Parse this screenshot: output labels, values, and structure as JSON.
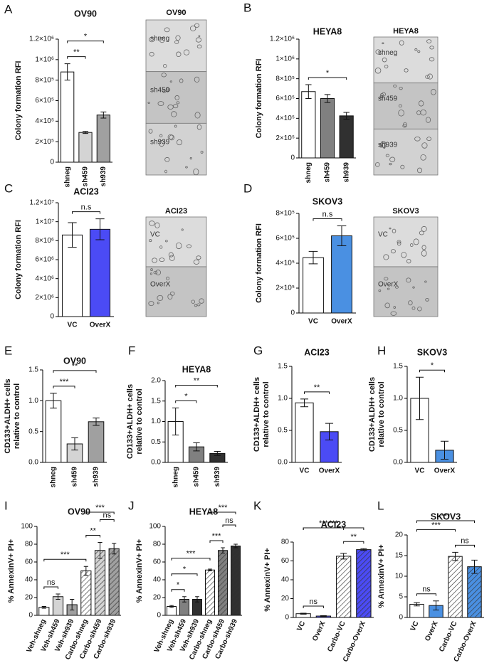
{
  "chart_data": [
    {
      "type": "bar",
      "panel": "A",
      "title": "OV90",
      "y_label": "Colony formation RFI",
      "categories": [
        "shneg",
        "sh459",
        "sh939"
      ],
      "values": [
        880000,
        290000,
        460000
      ],
      "errors": [
        80000,
        10000,
        30000
      ],
      "colors": [
        "#ffffff",
        "#d4d4d4",
        "#a0a0a0"
      ],
      "ylim": [
        0,
        1200000
      ],
      "yticks": [
        0,
        {
          "value": 200000,
          "label": "2×10⁵"
        },
        {
          "value": 400000,
          "label": "4×10⁵"
        },
        {
          "value": 600000,
          "label": "6×10⁵"
        },
        {
          "value": 800000,
          "label": "8×10⁵"
        },
        {
          "value": 1000000,
          "label": "1×10⁶"
        },
        {
          "value": 1200000,
          "label": "1.2×10⁶"
        }
      ],
      "annotations": [
        {
          "from": 0,
          "to": 1,
          "label": "**"
        },
        {
          "from": 0,
          "to": 2,
          "label": "*"
        }
      ],
      "image": {
        "title": "OV90",
        "labels": [
          "shneg",
          "sh459",
          "sh939"
        ]
      }
    },
    {
      "type": "bar",
      "panel": "B",
      "title": "HEYA8",
      "y_label": "Colony formation RFI",
      "categories": [
        "shneg",
        "sh459",
        "sh939"
      ],
      "values": [
        670000,
        600000,
        425000
      ],
      "errors": [
        70000,
        40000,
        35000
      ],
      "colors": [
        "#ffffff",
        "#808080",
        "#303030"
      ],
      "ylim": [
        0,
        1200000
      ],
      "yticks": [
        0,
        {
          "value": 200000,
          "label": "2×10⁵"
        },
        {
          "value": 400000,
          "label": "4×10⁵"
        },
        {
          "value": 600000,
          "label": "6×10⁵"
        },
        {
          "value": 800000,
          "label": "8×10⁵"
        },
        {
          "value": 1000000,
          "label": "1×10⁶"
        },
        {
          "value": 1200000,
          "label": "1.2×10⁶"
        }
      ],
      "annotations": [
        {
          "from": 0,
          "to": 2,
          "label": "*"
        }
      ],
      "image": {
        "title": "HEYA8",
        "labels": [
          "shneg",
          "sh459",
          "sh939"
        ]
      }
    },
    {
      "type": "bar",
      "panel": "C",
      "title": "ACI23",
      "y_label": "Colony formation RFI",
      "categories": [
        "VC",
        "OverX"
      ],
      "values": [
        8600000,
        9200000
      ],
      "errors": [
        1300000,
        1100000
      ],
      "colors": [
        "#ffffff",
        "#4b4bf5"
      ],
      "ylim": [
        0,
        12000000
      ],
      "yticks": [
        0,
        {
          "value": 2000000,
          "label": "2×10⁶"
        },
        {
          "value": 4000000,
          "label": "4×10⁶"
        },
        {
          "value": 6000000,
          "label": "6×10⁶"
        },
        {
          "value": 8000000,
          "label": "8×10⁶"
        },
        {
          "value": 10000000,
          "label": "1×10⁷"
        },
        {
          "value": 12000000,
          "label": "1.2×10⁷"
        }
      ],
      "annotations": [
        {
          "from": 0,
          "to": 1,
          "label": "n.s"
        }
      ],
      "image": {
        "title": "ACI23",
        "labels": [
          "VC",
          "OverX"
        ]
      }
    },
    {
      "type": "bar",
      "panel": "D",
      "title": "SKOV3",
      "y_label": "Colony formation RFI",
      "categories": [
        "VC",
        "OverX"
      ],
      "values": [
        445000,
        620000
      ],
      "errors": [
        50000,
        80000
      ],
      "colors": [
        "#ffffff",
        "#4a90e2"
      ],
      "ylim": [
        0,
        800000
      ],
      "yticks": [
        0,
        {
          "value": 200000,
          "label": "2×10⁵"
        },
        {
          "value": 400000,
          "label": "4×10⁵"
        },
        {
          "value": 600000,
          "label": "6×10⁵"
        },
        {
          "value": 800000,
          "label": "8×10⁵"
        }
      ],
      "annotations": [
        {
          "from": 0,
          "to": 1,
          "label": "n.s"
        }
      ],
      "image": {
        "title": "SKOV3",
        "labels": [
          "VC",
          "OverX"
        ]
      }
    },
    {
      "type": "bar",
      "panel": "E",
      "title": "OV90",
      "y_label": [
        "CD133+ALDH+ cells",
        "relative to control"
      ],
      "categories": [
        "shneg",
        "sh459",
        "sh939"
      ],
      "values": [
        1.0,
        0.3,
        0.66
      ],
      "errors": [
        0.12,
        0.1,
        0.06
      ],
      "colors": [
        "#ffffff",
        "#d4d4d4",
        "#a0a0a0"
      ],
      "ylim": [
        0,
        1.5
      ],
      "yticks": [
        {
          "value": 0,
          "label": "0.0"
        },
        0.5,
        {
          "value": 1,
          "label": "1.0"
        },
        1.5
      ],
      "annotations": [
        {
          "from": 0,
          "to": 1,
          "label": "***"
        },
        {
          "from": 0,
          "to": 2,
          "label": "**"
        }
      ]
    },
    {
      "type": "bar",
      "panel": "F",
      "title": "HEYA8",
      "y_label": [
        "CD133+ALDH+ cells",
        "relative to control"
      ],
      "categories": [
        "shneg",
        "sh459",
        "sh939"
      ],
      "values": [
        1.0,
        0.38,
        0.22
      ],
      "errors": [
        0.33,
        0.1,
        0.05
      ],
      "colors": [
        "#ffffff",
        "#808080",
        "#303030"
      ],
      "ylim": [
        0,
        2
      ],
      "yticks": [
        {
          "value": 0,
          "label": "0.0"
        },
        0.5,
        {
          "value": 1,
          "label": "1.0"
        },
        1.5,
        {
          "value": 2,
          "label": "2.0"
        }
      ],
      "annotations": [
        {
          "from": 0,
          "to": 1,
          "label": "*"
        },
        {
          "from": 0,
          "to": 2,
          "label": "**"
        }
      ]
    },
    {
      "type": "bar",
      "panel": "G",
      "title": "ACI23",
      "y_label": [
        "CD133+ALDH+ cells",
        "relative to control"
      ],
      "categories": [
        "VC",
        "OverX"
      ],
      "values": [
        0.93,
        0.48
      ],
      "errors": [
        0.06,
        0.13
      ],
      "colors": [
        "#ffffff",
        "#4b4bf5"
      ],
      "ylim": [
        0,
        1.5
      ],
      "yticks": [
        {
          "value": 0,
          "label": "0.0"
        },
        0.5,
        {
          "value": 1,
          "label": "1.0"
        },
        1.5
      ],
      "annotations": [
        {
          "from": 0,
          "to": 1,
          "label": "**"
        }
      ]
    },
    {
      "type": "bar",
      "panel": "H",
      "title": "SKOV3",
      "y_label": [
        "CD133+ALDH+ cells",
        "relative to control"
      ],
      "categories": [
        "VC",
        "OverX"
      ],
      "values": [
        1.0,
        0.19
      ],
      "errors": [
        0.33,
        0.14
      ],
      "colors": [
        "#ffffff",
        "#4a90e2"
      ],
      "ylim": [
        0,
        1.5
      ],
      "yticks": [
        {
          "value": 0,
          "label": "0.0"
        },
        0.5,
        {
          "value": 1,
          "label": "1.0"
        },
        1.5
      ],
      "annotations": [
        {
          "from": 0,
          "to": 1,
          "label": "*"
        }
      ]
    },
    {
      "type": "bar",
      "panel": "I",
      "title": "OV90",
      "y_label": "% AnnexinV+ PI+",
      "categories": [
        "Veh-shneg",
        "Veh-sh459",
        "Veh-sh939",
        "Carbo-shneg",
        "Carbo-sh459",
        "Carbo-sh939"
      ],
      "values": [
        9,
        21,
        12,
        50,
        73,
        75
      ],
      "errors": [
        1,
        3,
        6,
        5,
        9,
        6
      ],
      "colors": [
        "#ffffff",
        "#d4d4d4",
        "#a0a0a0",
        "#ffffff",
        "#d4d4d4",
        "#a0a0a0"
      ],
      "hatched": [
        false,
        false,
        false,
        true,
        true,
        true
      ],
      "ylim": [
        0,
        100
      ],
      "yticks": [
        0,
        20,
        40,
        60,
        80,
        100
      ],
      "annotations": [
        {
          "from": 0,
          "to": 1,
          "label": "ns"
        },
        {
          "from": 0,
          "to": 3,
          "label": "***"
        },
        {
          "from": 3,
          "to": 4,
          "label": "**"
        },
        {
          "from": 4,
          "to": 5,
          "label": "ns"
        },
        {
          "from": 3,
          "to": 5,
          "label": "***"
        }
      ]
    },
    {
      "type": "bar",
      "panel": "J",
      "title": "HEYA8",
      "y_label": "% AnnexinV+ PI+",
      "categories": [
        "Veh-shneg",
        "Veh-sh459",
        "Veh-sh939",
        "Carbo-shneg",
        "Carbo-sh459",
        "Carbo-sh939"
      ],
      "values": [
        10,
        18,
        18,
        51,
        73,
        78
      ],
      "errors": [
        1,
        3,
        3,
        1,
        3,
        2
      ],
      "colors": [
        "#ffffff",
        "#808080",
        "#303030",
        "#ffffff",
        "#808080",
        "#303030"
      ],
      "hatched": [
        false,
        false,
        false,
        true,
        true,
        true
      ],
      "ylim": [
        0,
        100
      ],
      "yticks": [
        0,
        20,
        40,
        60,
        80,
        100
      ],
      "annotations": [
        {
          "from": 0,
          "to": 1,
          "label": "*"
        },
        {
          "from": 0,
          "to": 2,
          "label": "*"
        },
        {
          "from": 0,
          "to": 3,
          "label": "***"
        },
        {
          "from": 3,
          "to": 4,
          "label": "***"
        },
        {
          "from": 4,
          "to": 5,
          "label": "ns"
        },
        {
          "from": 3,
          "to": 5,
          "label": "***"
        }
      ]
    },
    {
      "type": "bar",
      "panel": "K",
      "title": "ACI23",
      "y_label": "% AnnexinV+ PI+",
      "categories": [
        "VC",
        "OverX",
        "Carbo-VC",
        "Carbo-OverX"
      ],
      "values": [
        4,
        1.5,
        65,
        72
      ],
      "errors": [
        0.5,
        0.5,
        3,
        1
      ],
      "colors": [
        "#ffffff",
        "#5a5af5",
        "#ffffff",
        "#4b4bf5"
      ],
      "hatched": [
        false,
        false,
        true,
        true
      ],
      "ylim": [
        0,
        80
      ],
      "yticks": [
        0,
        20,
        40,
        60,
        80
      ],
      "annotations": [
        {
          "from": 0,
          "to": 1,
          "label": "ns"
        },
        {
          "from": 2,
          "to": 3,
          "label": "**"
        },
        {
          "from": 0,
          "to": 2,
          "label": "***"
        },
        {
          "from": 0,
          "to": 3,
          "label": "***"
        }
      ]
    },
    {
      "type": "bar",
      "panel": "L",
      "title": "SKOV3",
      "y_label": "% AnnexinV+ PI+",
      "categories": [
        "VC",
        "OverX",
        "Carbo-VC",
        "Carbo-OverX"
      ],
      "values": [
        3.2,
        2.9,
        14.8,
        12.3
      ],
      "errors": [
        0.4,
        1.1,
        1.0,
        1.6
      ],
      "colors": [
        "#ffffff",
        "#4a90e2",
        "#ffffff",
        "#4a90e2"
      ],
      "hatched": [
        false,
        false,
        true,
        true
      ],
      "ylim": [
        0,
        20
      ],
      "yticks": [
        0,
        5,
        10,
        15,
        20
      ],
      "annotations": [
        {
          "from": 0,
          "to": 1,
          "label": "ns"
        },
        {
          "from": 2,
          "to": 3,
          "label": "ns"
        },
        {
          "from": 0,
          "to": 2,
          "label": "***"
        },
        {
          "from": 0,
          "to": 3,
          "label": "***"
        }
      ]
    }
  ]
}
